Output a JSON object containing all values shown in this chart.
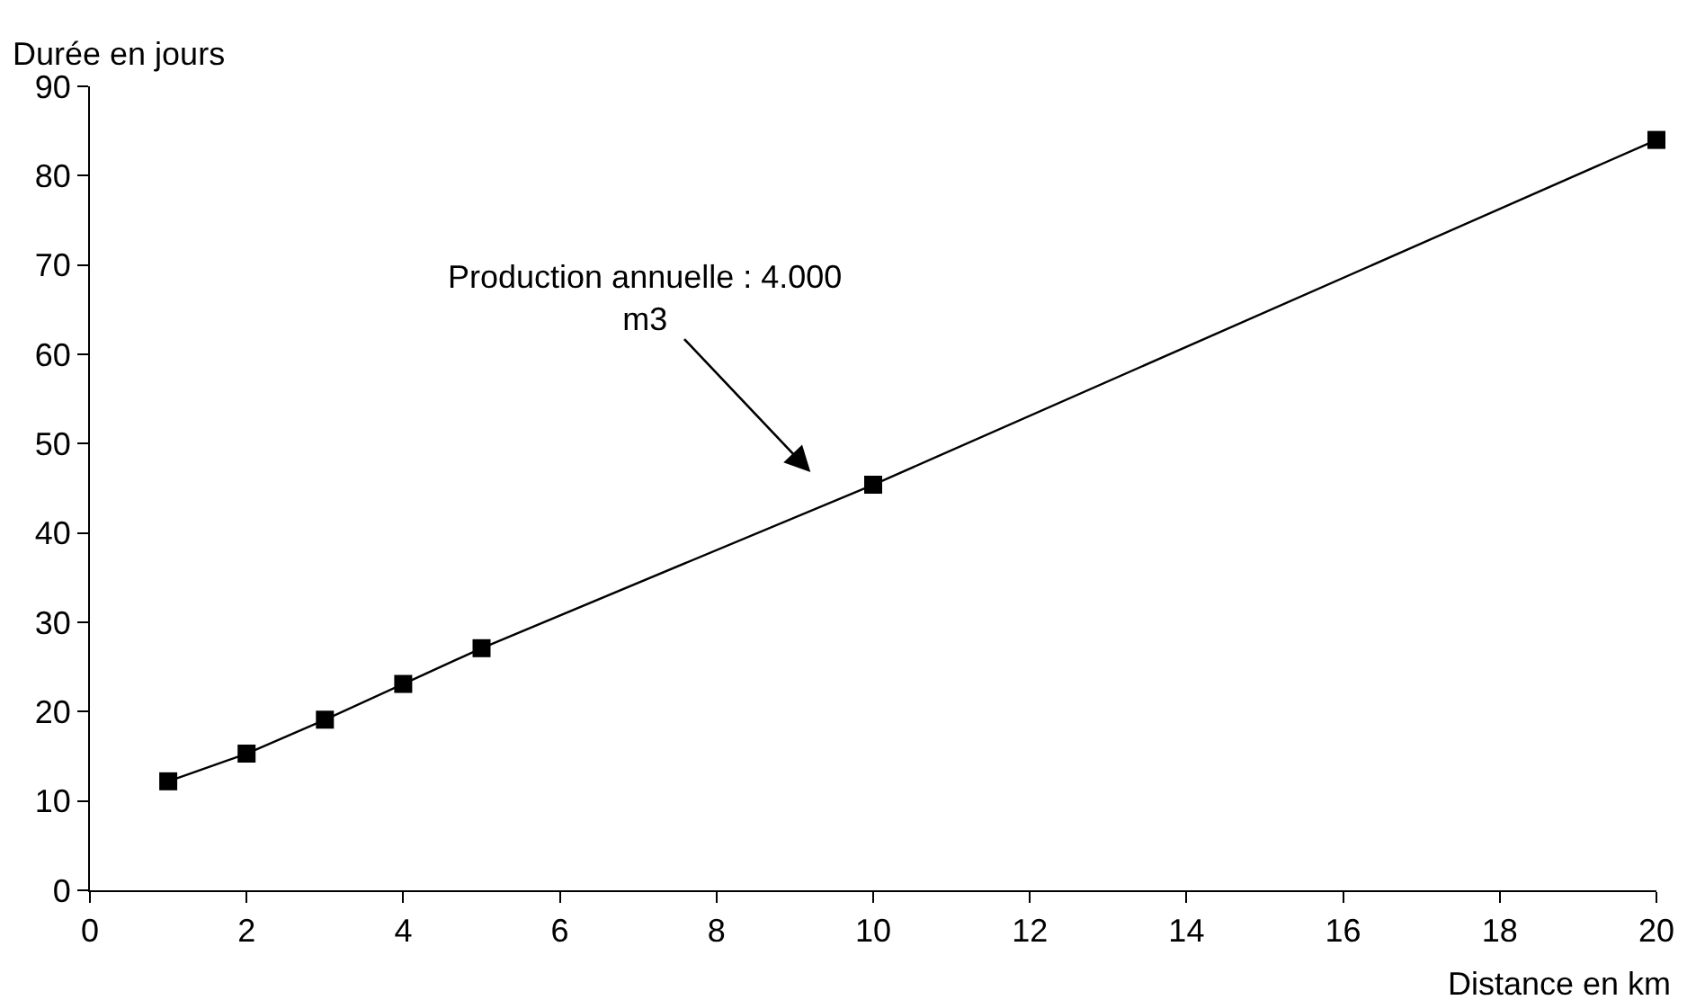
{
  "chart_data": {
    "type": "line",
    "xlabel": "Distance en km",
    "ylabel": "Durée en jours",
    "x": [
      1,
      2,
      3,
      4,
      5,
      10,
      20
    ],
    "series": [
      {
        "color": "#000000",
        "values": [
          12.2,
          15.3,
          19.1,
          23.1,
          27.1,
          45.4,
          84
        ]
      }
    ],
    "xlim": [
      0,
      20
    ],
    "xticks": [
      0,
      2,
      4,
      6,
      8,
      10,
      12,
      14,
      16,
      18,
      20
    ],
    "ylim": [
      0,
      90
    ],
    "yticks": [
      0,
      10,
      20,
      30,
      40,
      50,
      60,
      70,
      80,
      90
    ],
    "marker": "square",
    "line_style": "solid",
    "annotations": [
      "Production annuelle : 4.000\nm3"
    ]
  }
}
